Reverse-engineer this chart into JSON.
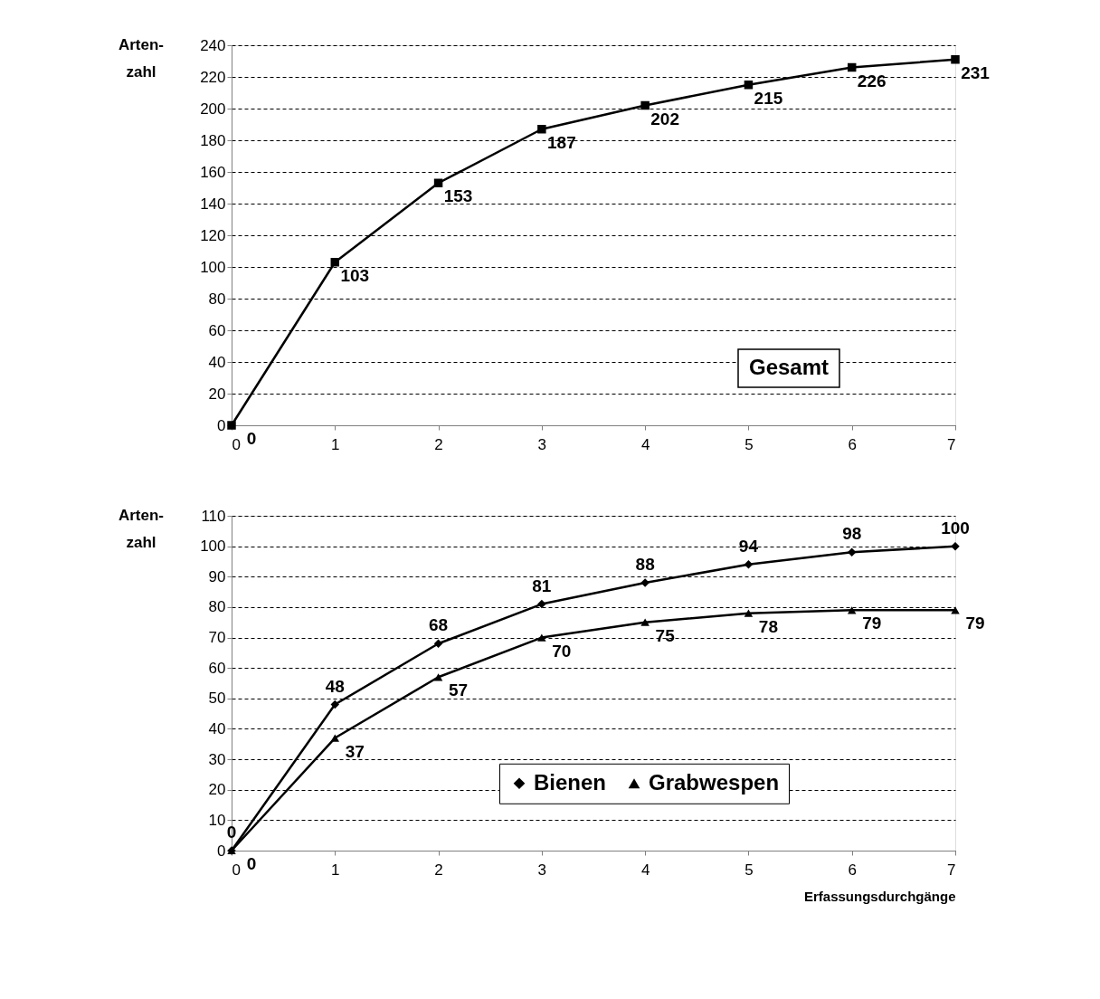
{
  "chart_data": [
    {
      "type": "line",
      "ylabel": "Arten-\nzahl",
      "x": [
        0,
        1,
        2,
        3,
        4,
        5,
        6,
        7
      ],
      "xlim": [
        0,
        7
      ],
      "xticks": [
        0,
        1,
        2,
        3,
        4,
        5,
        6,
        7
      ],
      "ylim": [
        0,
        240
      ],
      "yticks": [
        0,
        20,
        40,
        60,
        80,
        100,
        120,
        140,
        160,
        180,
        200,
        220,
        240
      ],
      "grid": "y",
      "data_labels": true,
      "line_style": "solid",
      "series": [
        {
          "name": "Gesamt",
          "color": "#000000",
          "marker": "square",
          "values": [
            0,
            103,
            153,
            187,
            202,
            215,
            226,
            231
          ]
        }
      ]
    },
    {
      "type": "line",
      "ylabel": "Arten-\nzahl",
      "xlabel": "Erfassungsdurchgänge",
      "x": [
        0,
        1,
        2,
        3,
        4,
        5,
        6,
        7
      ],
      "xlim": [
        0,
        7
      ],
      "xticks": [
        0,
        1,
        2,
        3,
        4,
        5,
        6,
        7
      ],
      "ylim": [
        0,
        110
      ],
      "yticks": [
        0,
        10,
        20,
        30,
        40,
        50,
        60,
        70,
        80,
        90,
        100,
        110
      ],
      "grid": "y",
      "legend": "bottom",
      "data_labels": true,
      "line_style": "solid",
      "series": [
        {
          "name": "Bienen",
          "color": "#000000",
          "marker": "diamond",
          "values": [
            0,
            48,
            68,
            81,
            88,
            94,
            98,
            100
          ]
        },
        {
          "name": "Grabwespen",
          "color": "#000000",
          "marker": "triangle",
          "values": [
            0,
            37,
            57,
            70,
            75,
            78,
            79,
            79
          ]
        }
      ]
    }
  ]
}
